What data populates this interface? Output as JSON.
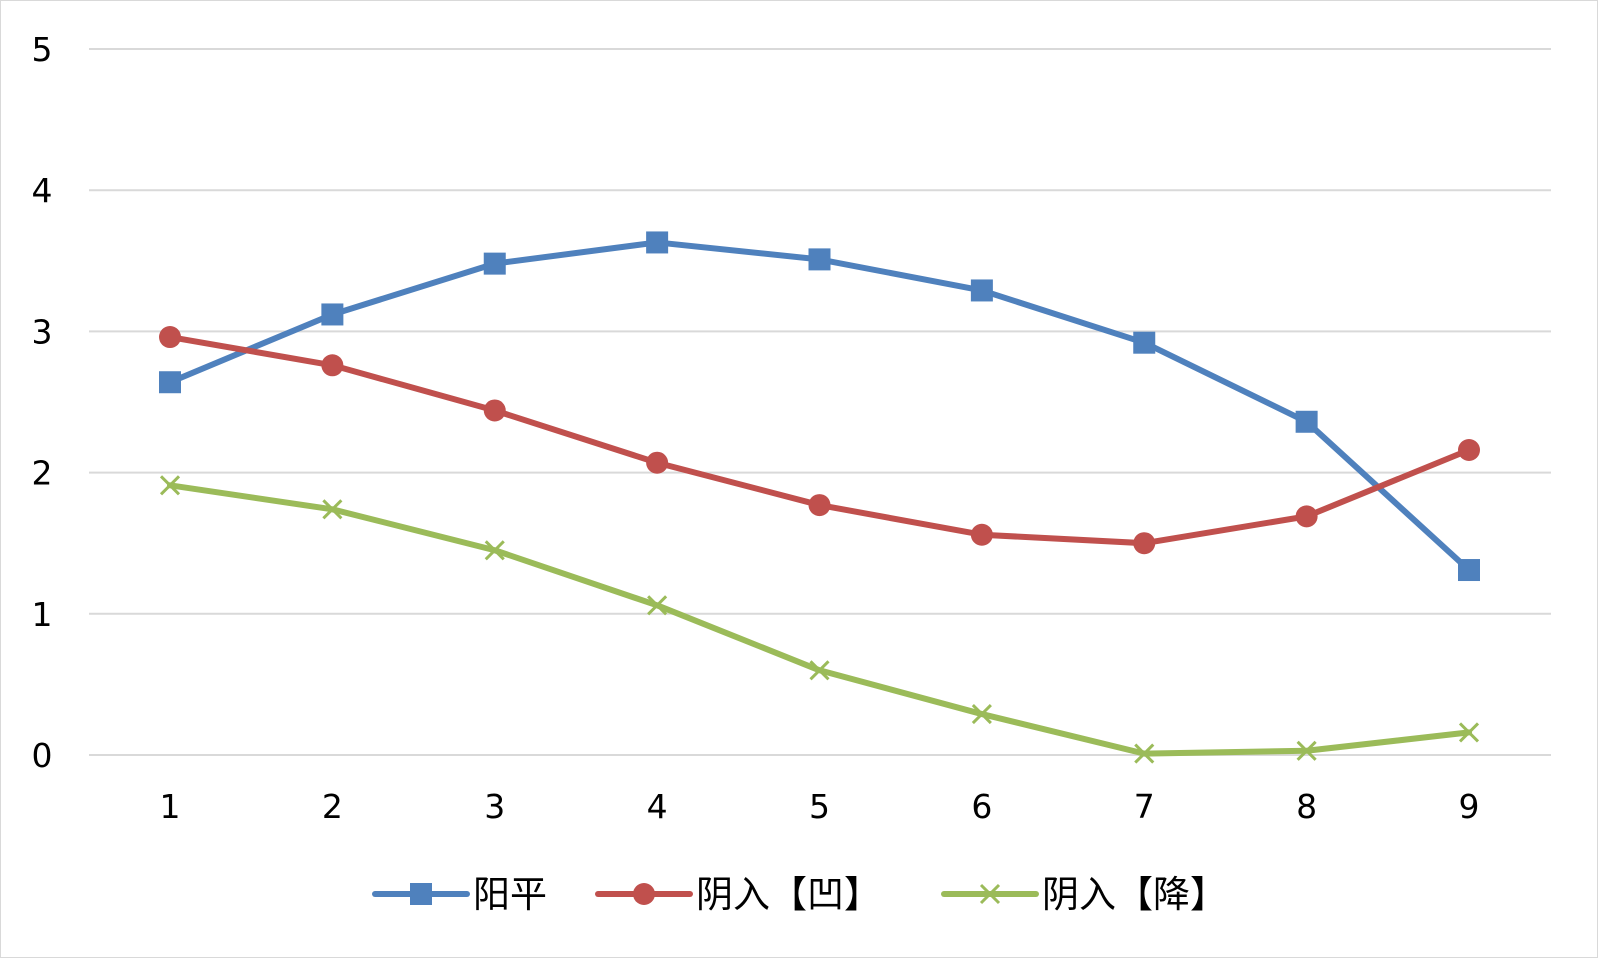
{
  "chart_data": {
    "type": "line",
    "title": "",
    "xlabel": "",
    "ylabel": "",
    "x": [
      1,
      2,
      3,
      4,
      5,
      6,
      7,
      8,
      9
    ],
    "x_tick_labels": [
      "1",
      "2",
      "3",
      "4",
      "5",
      "6",
      "7",
      "8",
      "9"
    ],
    "ylim": [
      0,
      5
    ],
    "y_ticks": [
      0,
      1,
      2,
      3,
      4,
      5
    ],
    "y_tick_labels": [
      "0",
      "1",
      "2",
      "3",
      "4",
      "5"
    ],
    "grid": "horizontal",
    "legend_position": "bottom",
    "series": [
      {
        "name": "阳平",
        "color": "#4f81bd",
        "marker": "square",
        "values": [
          2.64,
          3.12,
          3.48,
          3.63,
          3.51,
          3.29,
          2.92,
          2.36,
          1.31
        ]
      },
      {
        "name": "阴入【凹】",
        "color": "#c0504d",
        "marker": "circle",
        "values": [
          2.96,
          2.76,
          2.44,
          2.07,
          1.77,
          1.56,
          1.5,
          1.69,
          2.16
        ]
      },
      {
        "name": "阴入【降】",
        "color": "#9bbb59",
        "marker": "x",
        "values": [
          1.91,
          1.74,
          1.45,
          1.06,
          0.6,
          0.29,
          0.01,
          0.03,
          0.16
        ]
      }
    ]
  }
}
